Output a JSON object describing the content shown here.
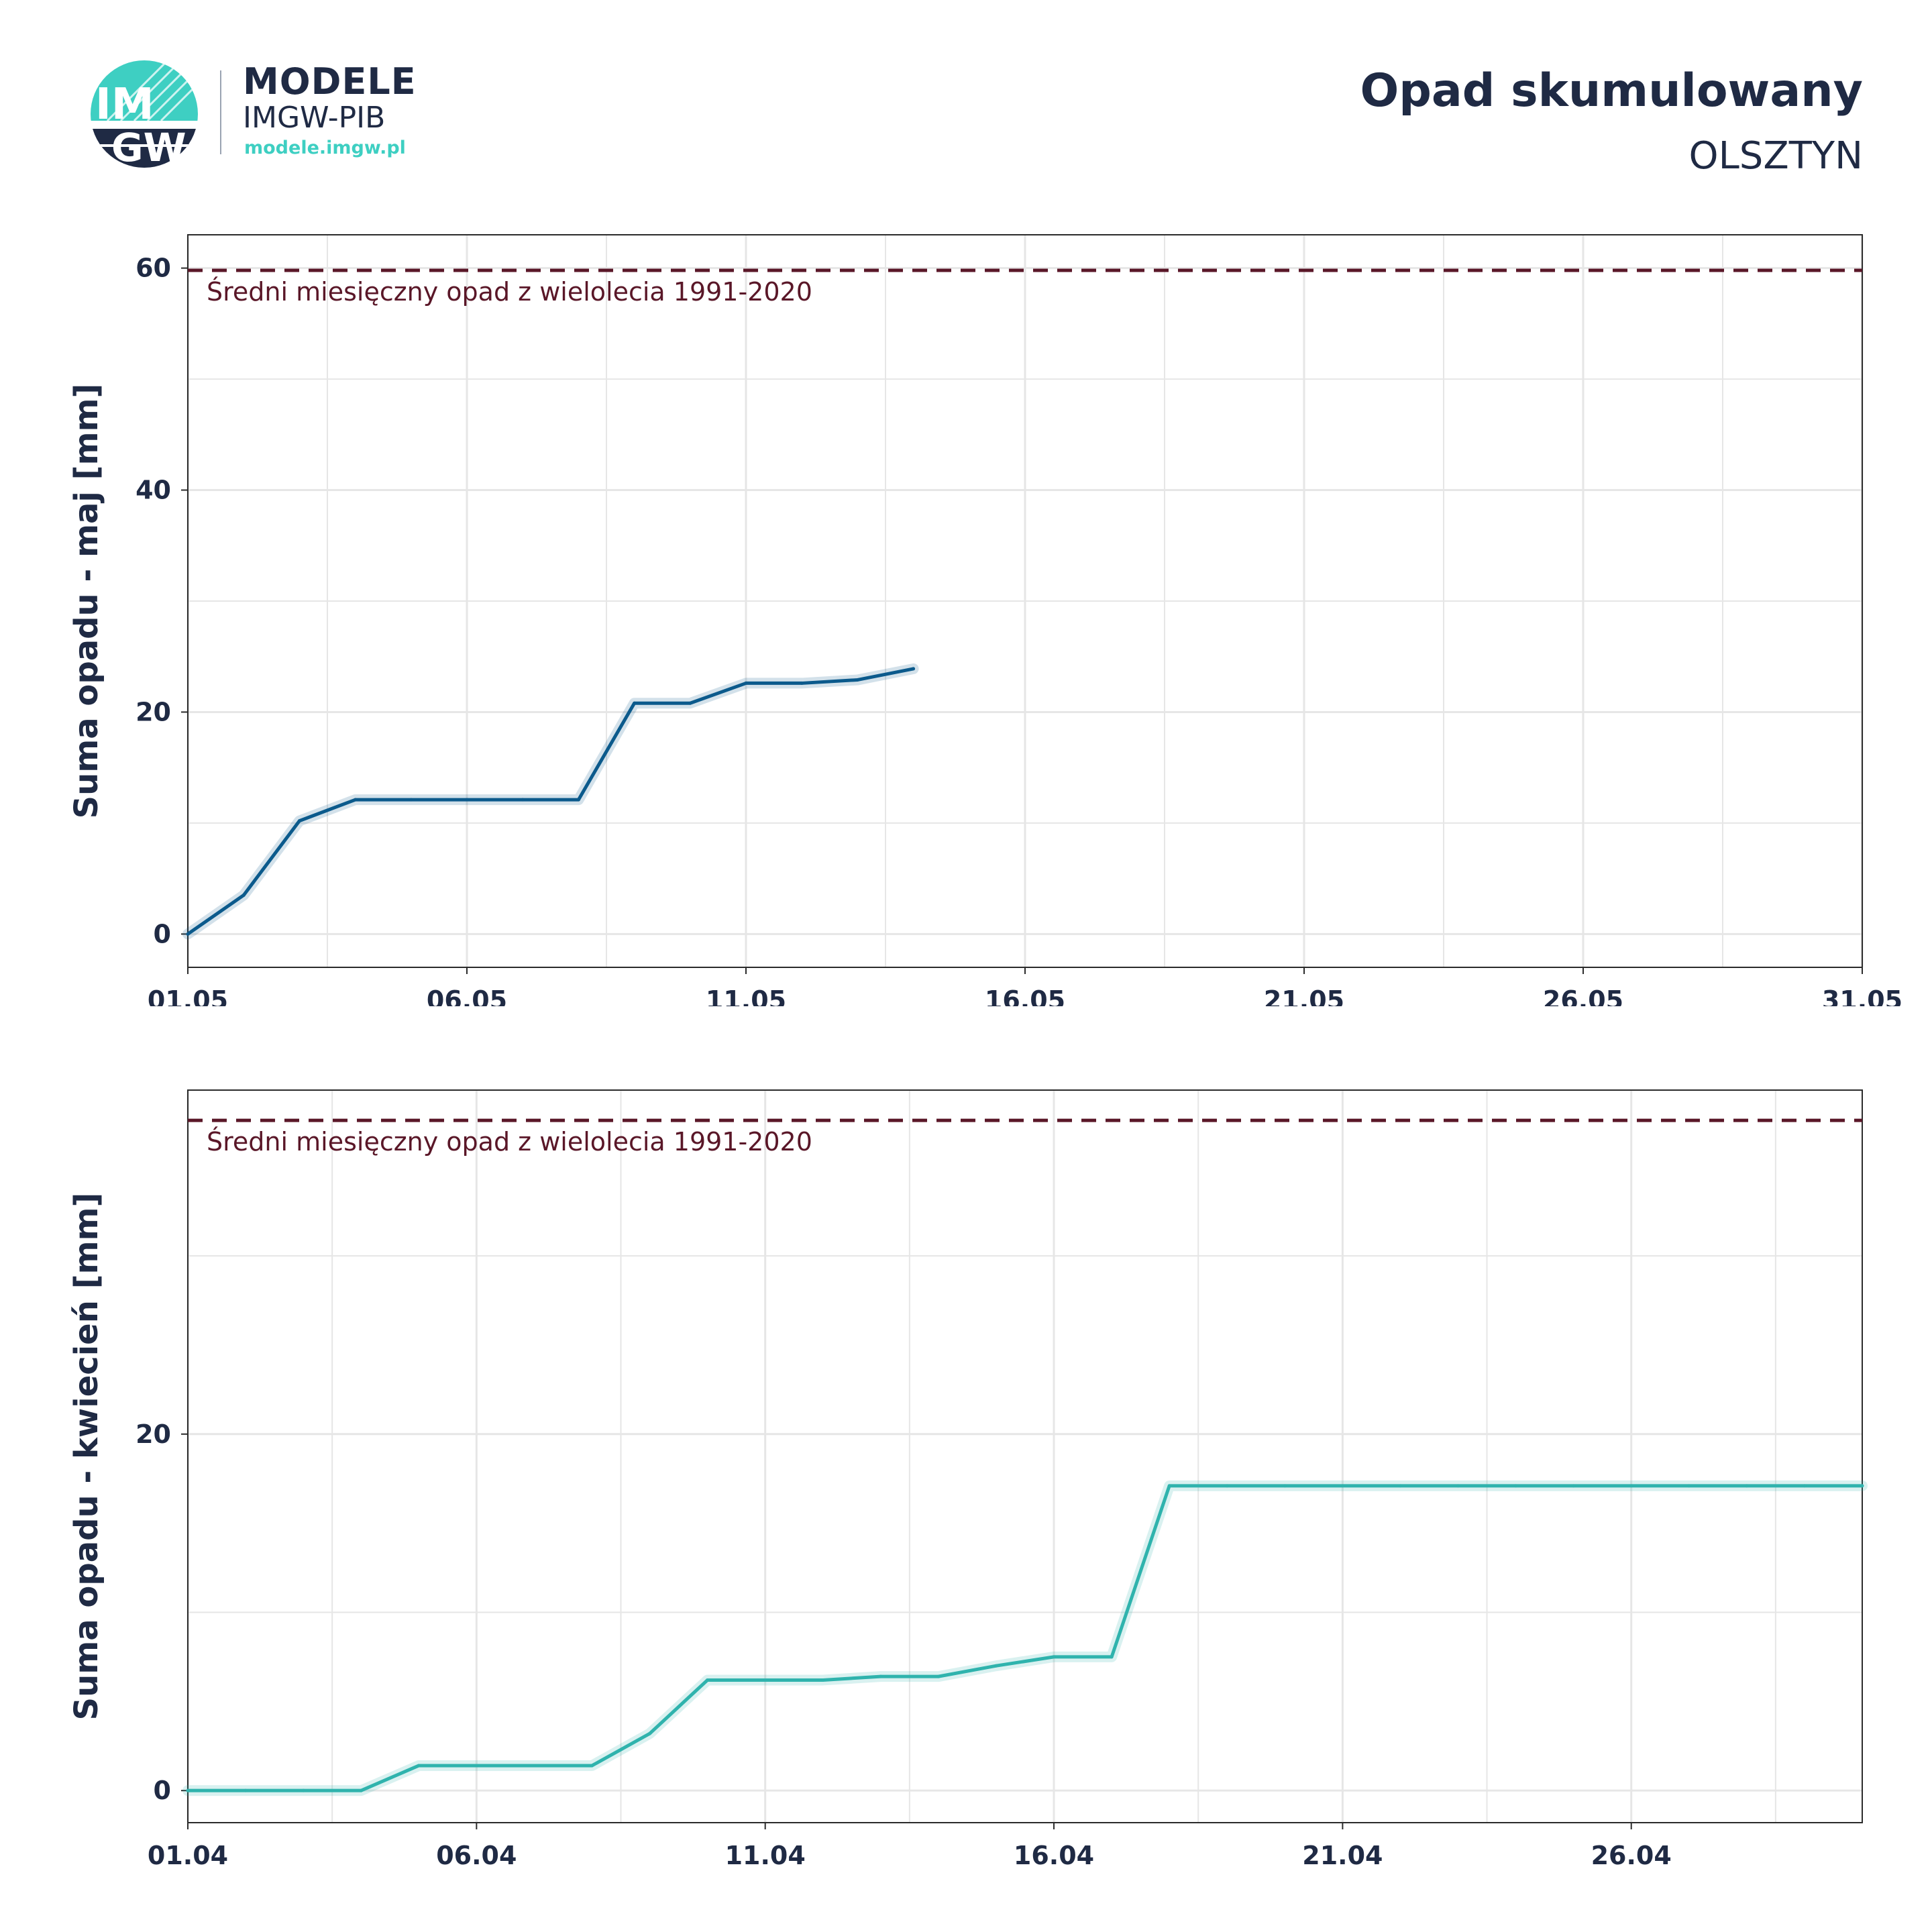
{
  "header": {
    "brand_name": "MODELE",
    "brand_sub": "IMGW-PIB",
    "brand_url": "modele.imgw.pl",
    "logo_text_top": "IM",
    "logo_text_bottom": "GW",
    "title": "Opad skumulowany",
    "subtitle": "OLSZTYN"
  },
  "colors": {
    "text": "#1f2a44",
    "grid": "#e6e6e6",
    "reference_line": "#5a1728",
    "may_line": "#0b5a8c",
    "april_line": "#2fb3ad",
    "logo_teal": "#3ecfc2",
    "logo_navy": "#1f2a44"
  },
  "chart_data": [
    {
      "type": "line",
      "ylabel": "Suma opadu - maj  [mm]",
      "xlim": [
        1,
        31
      ],
      "ylim": [
        -3,
        63
      ],
      "y_ticks": [
        0,
        20,
        40,
        60
      ],
      "x_tick_labels": [
        "01.05",
        "06.05",
        "11.05",
        "16.05",
        "21.05",
        "26.05",
        "31.05"
      ],
      "x_tick_days": [
        1,
        6,
        11,
        16,
        21,
        26,
        31
      ],
      "grid": true,
      "reference": {
        "value": 59.8,
        "label": "Średni miesięczny opad z wielolecia 1991-2020"
      },
      "series": [
        {
          "x": [
            1,
            2,
            3,
            4,
            5,
            6,
            7,
            8,
            9,
            10,
            11,
            12,
            13,
            14
          ],
          "values": [
            0,
            3.5,
            10.2,
            12.1,
            12.1,
            12.1,
            12.1,
            12.1,
            20.8,
            20.8,
            22.6,
            22.6,
            22.9,
            23.9
          ]
        }
      ]
    },
    {
      "type": "line",
      "ylabel": "Suma opadu - kwiecień  [mm]",
      "xlim": [
        1,
        30
      ],
      "ylim": [
        -1.8,
        39.3
      ],
      "y_ticks": [
        0,
        20
      ],
      "x_tick_labels": [
        "01.04",
        "06.04",
        "11.04",
        "16.04",
        "21.04",
        "26.04"
      ],
      "x_tick_days": [
        1,
        6,
        11,
        16,
        21,
        26
      ],
      "grid": true,
      "reference": {
        "value": 37.6,
        "label": "Średni miesięczny opad z wielolecia 1991-2020"
      },
      "series": [
        {
          "x": [
            1,
            2,
            3,
            4,
            5,
            6,
            7,
            8,
            9,
            10,
            11,
            12,
            13,
            14,
            15,
            16,
            17,
            18,
            19,
            20,
            21,
            22,
            23,
            24,
            25,
            26,
            27,
            28,
            29,
            30
          ],
          "values": [
            0,
            0,
            0,
            0,
            1.4,
            1.4,
            1.4,
            1.4,
            3.2,
            6.2,
            6.2,
            6.2,
            6.4,
            6.4,
            7.0,
            7.5,
            7.5,
            17.1,
            17.1,
            17.1,
            17.1,
            17.1,
            17.1,
            17.1,
            17.1,
            17.1,
            17.1,
            17.1,
            17.1,
            17.1
          ]
        }
      ]
    }
  ]
}
